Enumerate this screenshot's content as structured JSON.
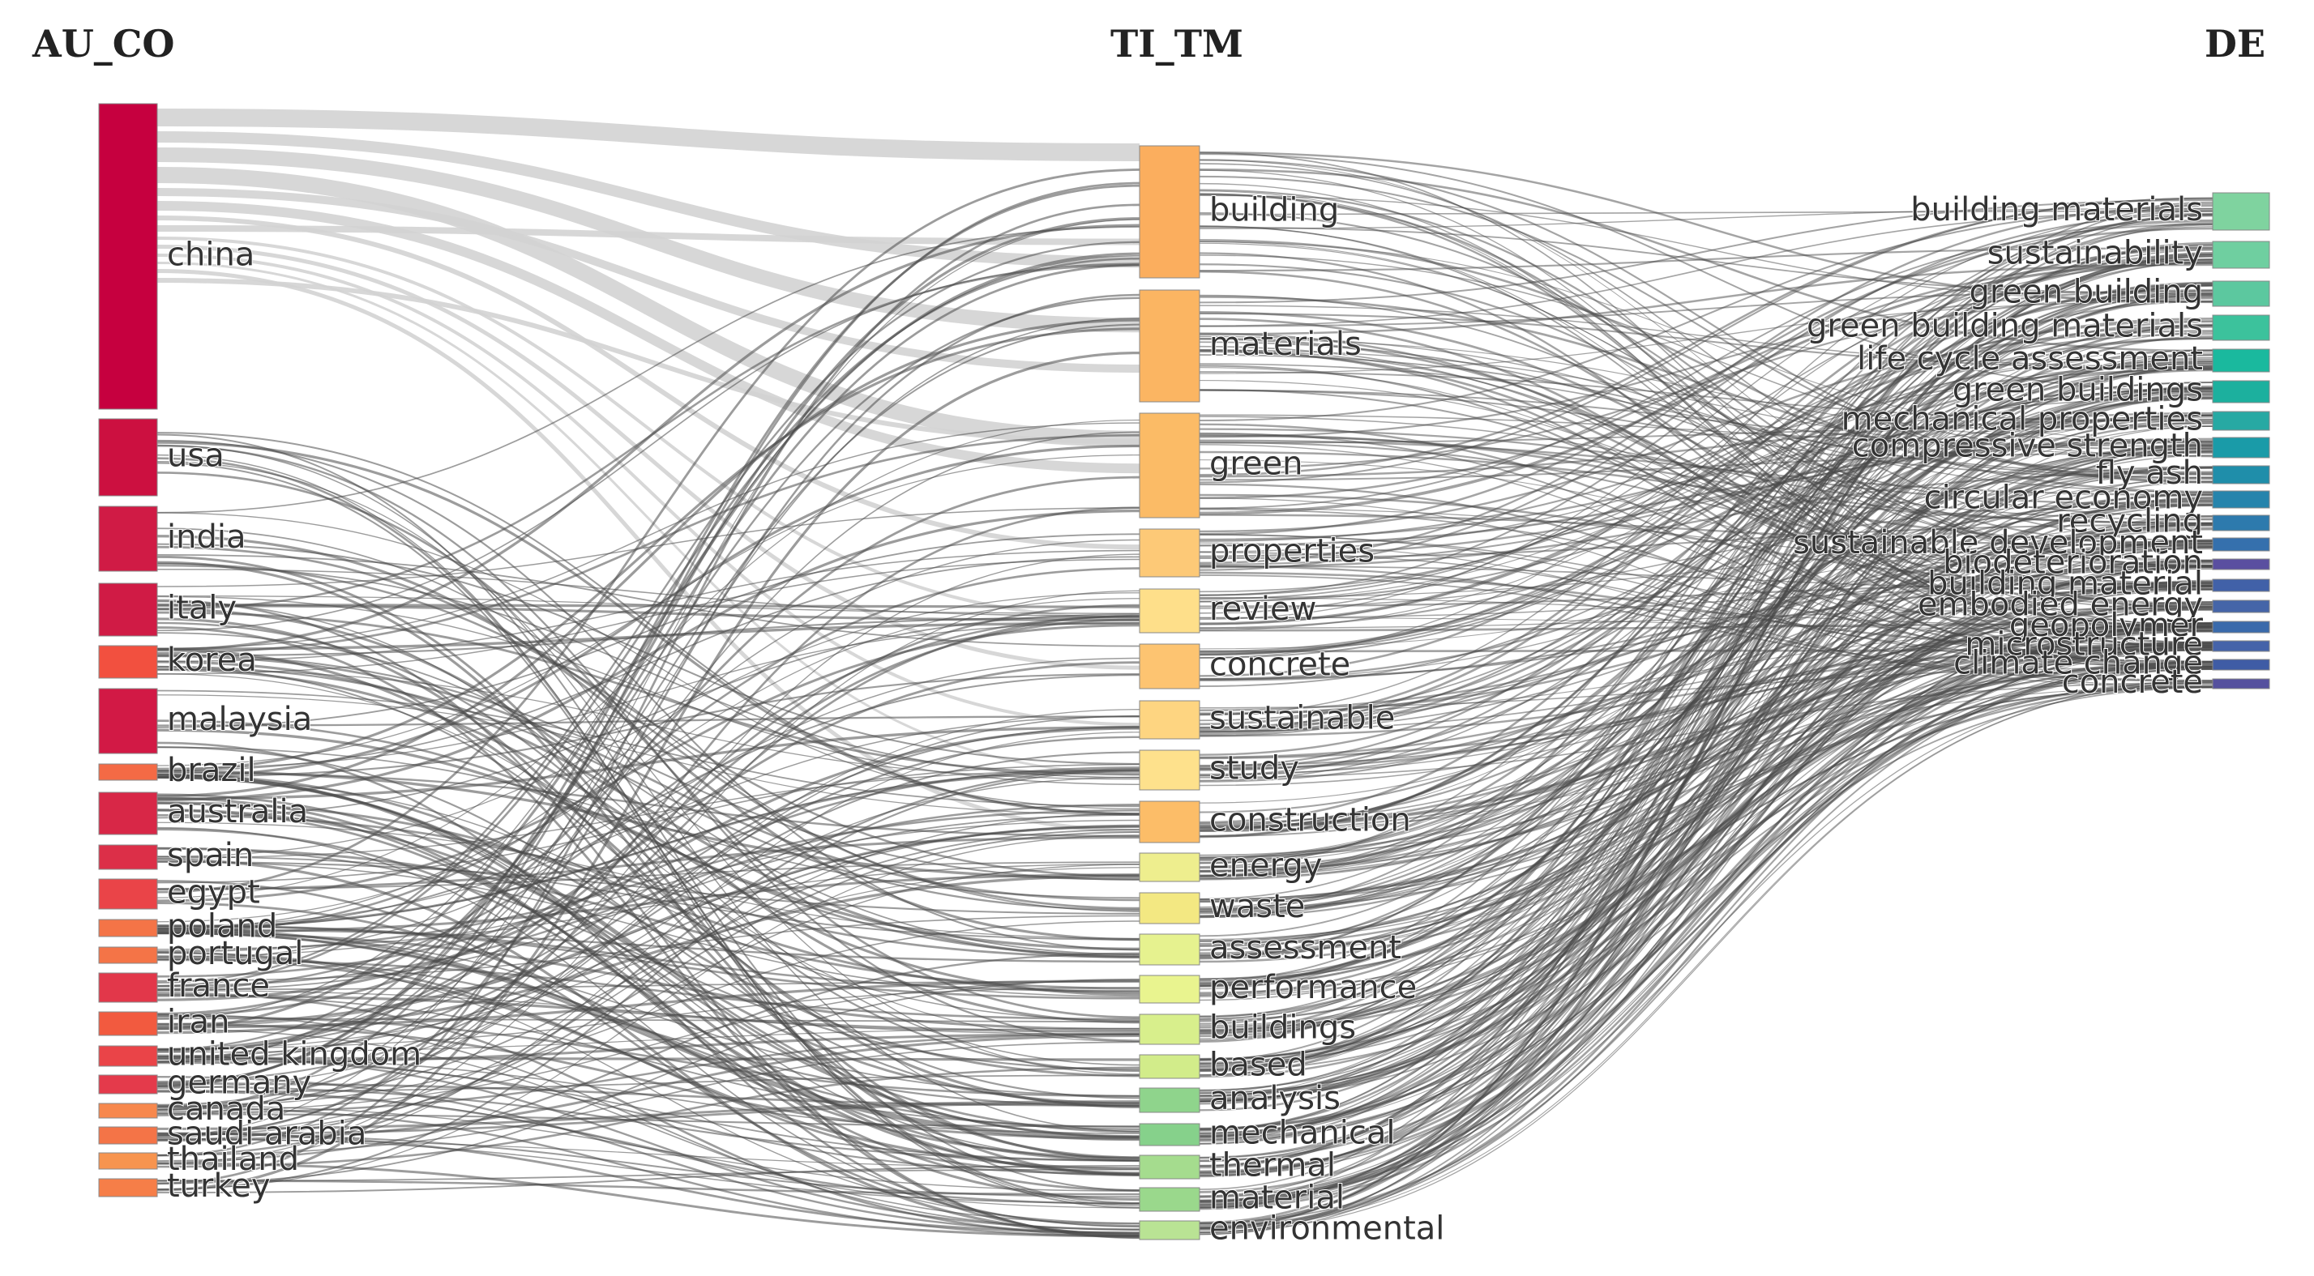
{
  "columns": {
    "left": "AU_CO",
    "middle": "TI_TM",
    "right": "DE"
  },
  "left_nodes": [
    {
      "label": "china",
      "color": "#c6003f"
    },
    {
      "label": "usa",
      "color": "#cc1040"
    },
    {
      "label": "india",
      "color": "#d01b45"
    },
    {
      "label": "italy",
      "color": "#d01b45"
    },
    {
      "label": "korea",
      "color": "#f2503f"
    },
    {
      "label": "malaysia",
      "color": "#d21945"
    },
    {
      "label": "brazil",
      "color": "#f46a45"
    },
    {
      "label": "australia",
      "color": "#d82747"
    },
    {
      "label": "spain",
      "color": "#dc2f48"
    },
    {
      "label": "egypt",
      "color": "#ea4448"
    },
    {
      "label": "poland",
      "color": "#f47447"
    },
    {
      "label": "portugal",
      "color": "#f47447"
    },
    {
      "label": "france",
      "color": "#e2374a"
    },
    {
      "label": "iran",
      "color": "#f25a3f"
    },
    {
      "label": "united kingdom",
      "color": "#ea4448"
    },
    {
      "label": "germany",
      "color": "#e43a4b"
    },
    {
      "label": "canada",
      "color": "#f7884d"
    },
    {
      "label": "saudi arabia",
      "color": "#f47447"
    },
    {
      "label": "thailand",
      "color": "#f7944f"
    },
    {
      "label": "turkey",
      "color": "#f67e48"
    }
  ],
  "middle_nodes": [
    {
      "label": "building",
      "color": "#fbae5e"
    },
    {
      "label": "materials",
      "color": "#fbb562"
    },
    {
      "label": "green",
      "color": "#fbbb66"
    },
    {
      "label": "properties",
      "color": "#fdc977"
    },
    {
      "label": "review",
      "color": "#fedf8a"
    },
    {
      "label": "concrete",
      "color": "#fdc471"
    },
    {
      "label": "sustainable",
      "color": "#fed581"
    },
    {
      "label": "study",
      "color": "#fee18c"
    },
    {
      "label": "construction",
      "color": "#fcbd68"
    },
    {
      "label": "energy",
      "color": "#eeee8e"
    },
    {
      "label": "waste",
      "color": "#f3e882"
    },
    {
      "label": "assessment",
      "color": "#e6f28f"
    },
    {
      "label": "performance",
      "color": "#e9f48f"
    },
    {
      "label": "buildings",
      "color": "#d8ef8c"
    },
    {
      "label": "based",
      "color": "#d2ec8a"
    },
    {
      "label": "analysis",
      "color": "#8fd48c"
    },
    {
      "label": "mechanical",
      "color": "#86d18b"
    },
    {
      "label": "thermal",
      "color": "#a5dc8e"
    },
    {
      "label": "material",
      "color": "#9ad88c"
    },
    {
      "label": "environmental",
      "color": "#b9e394"
    }
  ],
  "right_nodes": [
    {
      "label": "building materials",
      "color": "#7fd39f"
    },
    {
      "label": "sustainability",
      "color": "#6fcfa0"
    },
    {
      "label": "green building",
      "color": "#5cc89f"
    },
    {
      "label": "green building materials",
      "color": "#3cc29c"
    },
    {
      "label": "life cycle assessment",
      "color": "#1ab99e"
    },
    {
      "label": "green buildings",
      "color": "#1cb09e"
    },
    {
      "label": "mechanical properties",
      "color": "#27a9a3"
    },
    {
      "label": "compressive strength",
      "color": "#1a9ba8"
    },
    {
      "label": "fly ash",
      "color": "#1f8eaa"
    },
    {
      "label": "circular economy",
      "color": "#2684ac"
    },
    {
      "label": "recycling",
      "color": "#2d7aad"
    },
    {
      "label": "sustainable development",
      "color": "#3570ad"
    },
    {
      "label": "biodeterioration",
      "color": "#5a4fa0"
    },
    {
      "label": "building material",
      "color": "#4161a8"
    },
    {
      "label": "embodied energy",
      "color": "#4565a8"
    },
    {
      "label": "geopolymer",
      "color": "#3a6aab"
    },
    {
      "label": "microstructure",
      "color": "#4563a9"
    },
    {
      "label": "climate change",
      "color": "#3f5ca5"
    },
    {
      "label": "concrete",
      "color": "#55509e"
    }
  ],
  "link_colors": {
    "china_links": "#d3d3d3",
    "other_links": "#4a4a4a"
  }
}
